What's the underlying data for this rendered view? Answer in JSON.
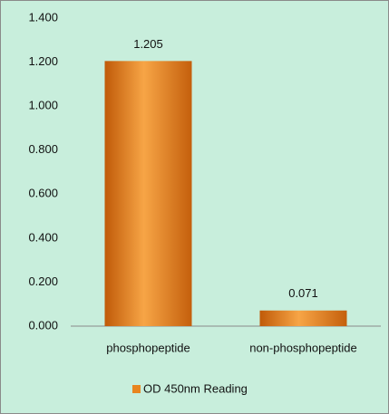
{
  "chart_data": {
    "type": "bar",
    "categories": [
      "phosphopeptide",
      "non-phosphopeptide"
    ],
    "series": [
      {
        "name": "OD 450nm Reading",
        "color": "#e8851f",
        "values": [
          1.205,
          0.071
        ]
      }
    ],
    "ylim": [
      0,
      1.4
    ],
    "yticks": [
      {
        "value": 0,
        "label": "0.000"
      },
      {
        "value": 0.2,
        "label": "0.200"
      },
      {
        "value": 0.4,
        "label": "0.400"
      },
      {
        "value": 0.6,
        "label": "0.600"
      },
      {
        "value": 0.8,
        "label": "0.800"
      },
      {
        "value": 1.0,
        "label": "1.000"
      },
      {
        "value": 1.2,
        "label": "1.200"
      },
      {
        "value": 1.4,
        "label": "1.400"
      }
    ],
    "legend": "bottom"
  }
}
